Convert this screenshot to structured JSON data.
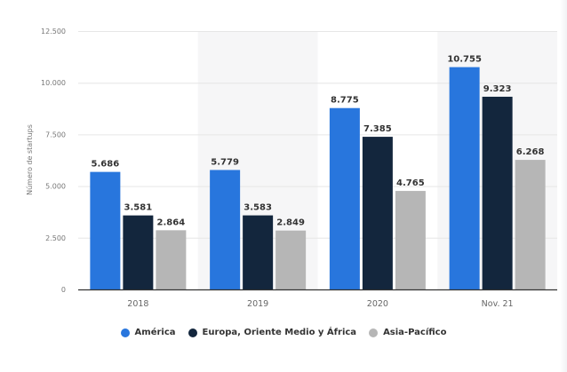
{
  "chart_data": {
    "type": "bar",
    "title": "",
    "xlabel": "",
    "ylabel": "Número de startups",
    "ylim": [
      0,
      12500
    ],
    "yticks": [
      0,
      2500,
      5000,
      7500,
      10000,
      12500
    ],
    "ytick_labels": [
      "0",
      "2.500",
      "5.000",
      "7.500",
      "10.000",
      "12.500"
    ],
    "categories": [
      "2018",
      "2019",
      "2020",
      "Nov. 21"
    ],
    "series": [
      {
        "name": "América",
        "color": "#2876dd",
        "values": [
          5686,
          5779,
          8775,
          10755
        ],
        "labels": [
          "5.686",
          "5.779",
          "8.775",
          "10.755"
        ]
      },
      {
        "name": "Europa, Oriente Medio y África",
        "color": "#13263d",
        "values": [
          3581,
          3583,
          7385,
          9323
        ],
        "labels": [
          "3.581",
          "3.583",
          "7.385",
          "9.323"
        ]
      },
      {
        "name": "Asia-Pacífico",
        "color": "#b6b6b6",
        "values": [
          2864,
          2849,
          4765,
          6268
        ],
        "labels": [
          "2.864",
          "2.849",
          "4.765",
          "6.268"
        ]
      }
    ],
    "grid": true,
    "legend_position": "bottom-center"
  }
}
